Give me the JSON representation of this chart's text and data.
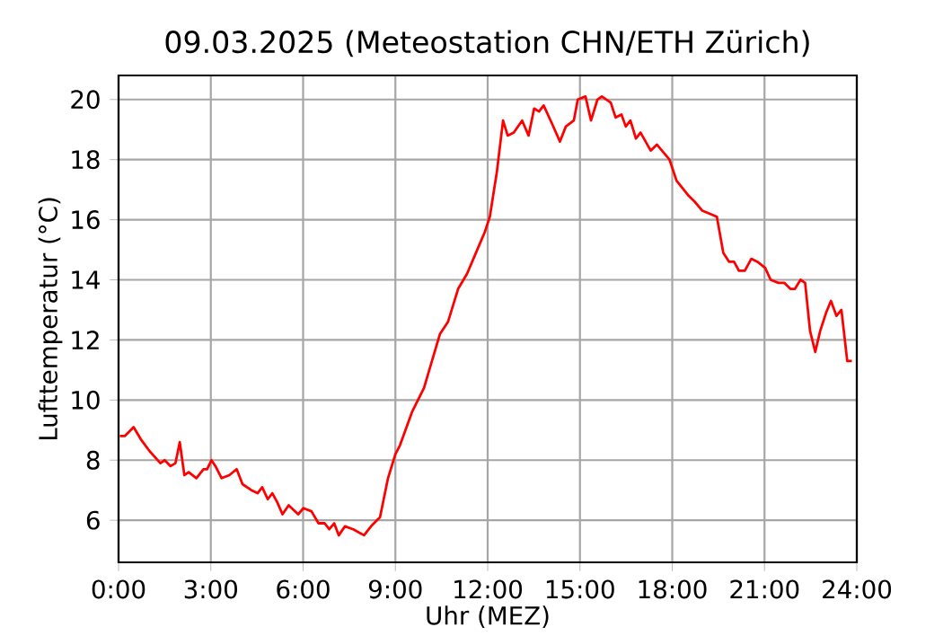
{
  "chart_data": {
    "type": "line",
    "title": "09.03.2025  (Meteostation CHN/ETH Zürich)",
    "xlabel": "Uhr (MEZ)",
    "ylabel": "Lufttemperatur (°C)",
    "color": "#ff0000",
    "grid": true,
    "x": [
      0.04,
      0.2,
      0.49,
      0.72,
      1.01,
      1.36,
      1.5,
      1.69,
      1.85,
      1.99,
      2.14,
      2.28,
      2.53,
      2.76,
      2.88,
      3.02,
      3.15,
      3.35,
      3.6,
      3.84,
      4.03,
      4.32,
      4.52,
      4.67,
      4.85,
      5.0,
      5.16,
      5.33,
      5.53,
      5.84,
      6.01,
      6.27,
      6.5,
      6.7,
      6.85,
      7.01,
      7.16,
      7.36,
      7.63,
      7.98,
      8.21,
      8.5,
      8.76,
      9.0,
      9.15,
      9.54,
      9.93,
      10.16,
      10.45,
      10.71,
      11.04,
      11.33,
      11.62,
      11.91,
      12.07,
      12.3,
      12.5,
      12.65,
      12.85,
      13.12,
      13.33,
      13.51,
      13.67,
      13.82,
      14.09,
      14.35,
      14.54,
      14.8,
      14.93,
      15.18,
      15.36,
      15.57,
      15.71,
      16.0,
      16.16,
      16.35,
      16.49,
      16.64,
      16.82,
      16.97,
      17.3,
      17.5,
      17.91,
      18.14,
      18.53,
      18.73,
      18.98,
      19.45,
      19.66,
      19.85,
      20.01,
      20.17,
      20.36,
      20.57,
      20.77,
      21.02,
      21.2,
      21.45,
      21.64,
      21.84,
      21.99,
      22.17,
      22.32,
      22.48,
      22.65,
      22.81,
      23.0,
      23.16,
      23.34,
      23.5,
      23.69,
      23.84
    ],
    "values": [
      8.8,
      8.8,
      9.1,
      8.7,
      8.3,
      7.9,
      8.0,
      7.8,
      7.9,
      8.6,
      7.5,
      7.6,
      7.4,
      7.7,
      7.7,
      8.0,
      7.8,
      7.4,
      7.5,
      7.7,
      7.2,
      7.0,
      6.9,
      7.1,
      6.7,
      6.9,
      6.6,
      6.2,
      6.5,
      6.2,
      6.4,
      6.3,
      5.9,
      5.9,
      5.7,
      5.9,
      5.5,
      5.8,
      5.7,
      5.5,
      5.8,
      6.1,
      7.4,
      8.2,
      8.5,
      9.6,
      10.4,
      11.2,
      12.2,
      12.6,
      13.7,
      14.2,
      14.9,
      15.6,
      16.1,
      17.6,
      19.3,
      18.8,
      18.9,
      19.3,
      18.8,
      19.7,
      19.6,
      19.8,
      19.2,
      18.6,
      19.1,
      19.3,
      20.0,
      20.1,
      19.3,
      20.0,
      20.1,
      19.9,
      19.4,
      19.5,
      19.1,
      19.3,
      18.7,
      18.9,
      18.3,
      18.5,
      18.0,
      17.3,
      16.8,
      16.6,
      16.3,
      16.1,
      14.9,
      14.6,
      14.6,
      14.3,
      14.3,
      14.7,
      14.6,
      14.4,
      14.0,
      13.9,
      13.9,
      13.7,
      13.7,
      14.0,
      13.9,
      12.3,
      11.6,
      12.3,
      12.9,
      13.3,
      12.8,
      13.0,
      11.3,
      11.3
    ],
    "xlim": [
      0,
      24
    ],
    "xticks": [
      {
        "value": 0,
        "label": "0:00"
      },
      {
        "value": 3,
        "label": "3:00"
      },
      {
        "value": 6,
        "label": "6:00"
      },
      {
        "value": 9,
        "label": "9:00"
      },
      {
        "value": 12,
        "label": "12:00"
      },
      {
        "value": 15,
        "label": "15:00"
      },
      {
        "value": 18,
        "label": "18:00"
      },
      {
        "value": 21,
        "label": "21:00"
      },
      {
        "value": 24,
        "label": "24:00"
      }
    ],
    "ylim": [
      4.6,
      20.8
    ],
    "yticks": [
      6,
      8,
      10,
      12,
      14,
      16,
      18,
      20
    ]
  }
}
